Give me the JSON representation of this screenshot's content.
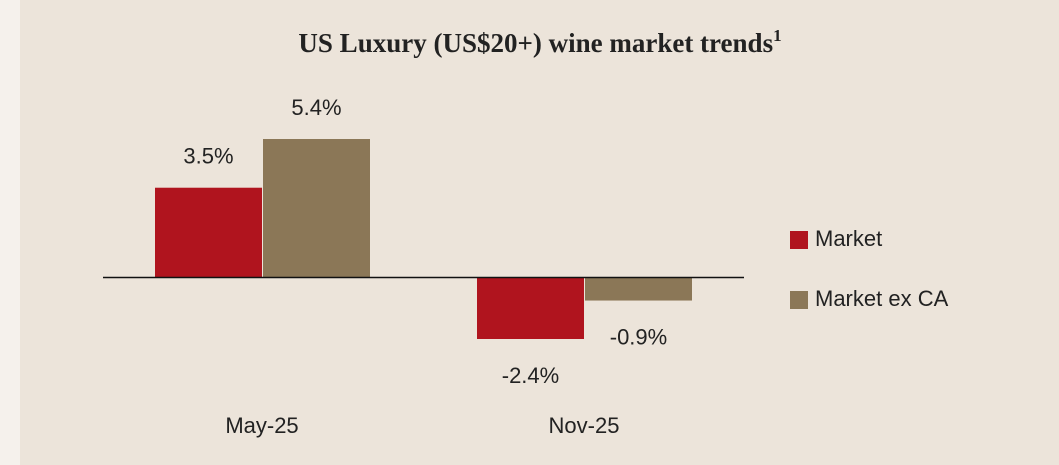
{
  "chart_data": {
    "type": "bar",
    "title": "US Luxury (US$20+) wine market trends",
    "title_superscript": "1",
    "categories": [
      "May-25",
      "Nov-25"
    ],
    "series": [
      {
        "name": "Market",
        "color": "#b0141e",
        "values": [
          3.5,
          -2.4
        ],
        "value_labels": [
          "3.5%",
          "-2.4%"
        ]
      },
      {
        "name": "Market ex CA",
        "color": "#8b7757",
        "values": [
          5.4,
          -0.9
        ],
        "value_labels": [
          "5.4%",
          "-0.9%"
        ]
      }
    ],
    "legend": "right"
  }
}
